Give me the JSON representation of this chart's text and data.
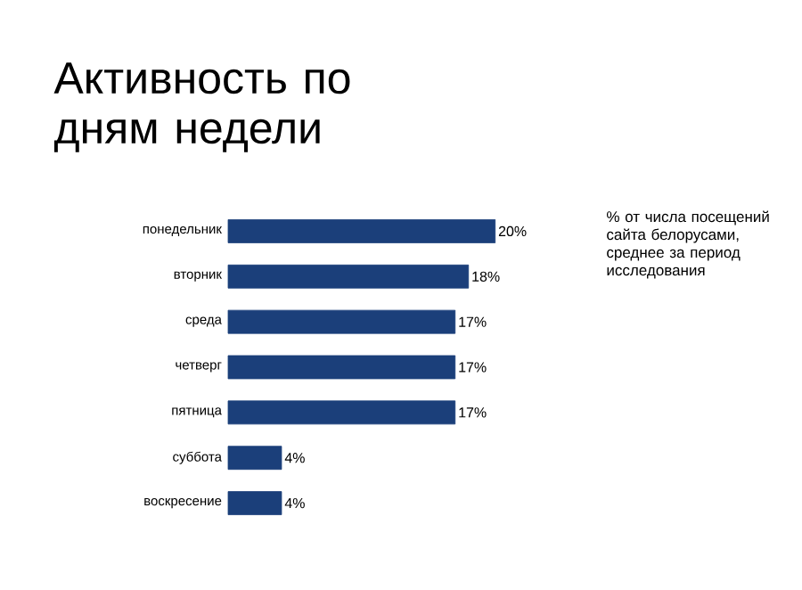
{
  "chart_data": {
    "type": "bar",
    "orientation": "horizontal",
    "title": "Активность по дням недели",
    "categories": [
      "понедельник",
      "вторник",
      "среда",
      "четверг",
      "пятница",
      "суббота",
      "воскресение"
    ],
    "values": [
      20,
      18,
      17,
      17,
      17,
      4,
      4
    ],
    "value_labels": [
      "20%",
      "18%",
      "17%",
      "17%",
      "17%",
      "4%",
      "4%"
    ],
    "color": "#1b3f7a",
    "annotations": [
      "% от числа посещений сайта белорусами, среднее за период исследования"
    ]
  }
}
